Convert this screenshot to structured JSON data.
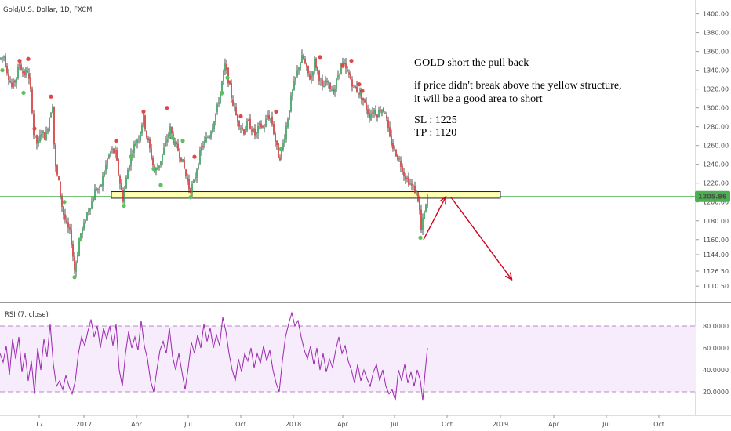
{
  "symbol_label": "Gold/U.S. Dollar, 1D, FXCM",
  "rsi_label": "RSI (7, close)",
  "current_price_label": "1205.86",
  "colors": {
    "up": "#2e9a55",
    "down": "#d12e2e",
    "wick": "#222222",
    "price_line": "#4caf50",
    "zone_fill": "#ffffb0",
    "zone_stroke": "#222222",
    "arrow": "#d0021b",
    "rsi_line": "#9c27b0",
    "rsi_band": "#f6ecfb",
    "rsi_level": "#b58bc4"
  },
  "annotation": {
    "title": "GOLD short the pull back",
    "line1": "if price didn't break above the yellow structure,",
    "line2": "it will be a good area to short",
    "sl": "SL : 1225",
    "tp": "TP : 1120"
  },
  "chart_data": [
    {
      "type": "candlestick",
      "title": "Gold/U.S. Dollar, 1D, FXCM",
      "ylim": [
        1104,
        1408
      ],
      "y_ticks": [
        "1400.00",
        "1380.00",
        "1360.00",
        "1340.00",
        "1320.00",
        "1300.00",
        "1280.00",
        "1260.00",
        "1240.00",
        "1220.00",
        "1200.00",
        "1180.00",
        "1160.00",
        "1144.00",
        "1126.50",
        "1110.50"
      ],
      "x_ticks": [
        "17",
        "2017",
        "Apr",
        "Jul",
        "Oct",
        "2018",
        "Apr",
        "Jul",
        "Oct",
        "2019",
        "Apr",
        "Jul",
        "Oct"
      ],
      "current_price": 1205.86,
      "resistance_zone": [
        1204,
        1211
      ],
      "projection": [
        [
          1160,
          1205
        ],
        [
          1205,
          1118
        ]
      ],
      "price_series": [
        {
          "x": 0,
          "y": 1352
        },
        {
          "x": 5,
          "y": 1355
        },
        {
          "x": 10,
          "y": 1336
        },
        {
          "x": 15,
          "y": 1322
        },
        {
          "x": 20,
          "y": 1330
        },
        {
          "x": 25,
          "y": 1348
        },
        {
          "x": 30,
          "y": 1335
        },
        {
          "x": 35,
          "y": 1340
        },
        {
          "x": 40,
          "y": 1312
        },
        {
          "x": 43,
          "y": 1272
        },
        {
          "x": 48,
          "y": 1260
        },
        {
          "x": 53,
          "y": 1275
        },
        {
          "x": 58,
          "y": 1268
        },
        {
          "x": 63,
          "y": 1290
        },
        {
          "x": 67,
          "y": 1305
        },
        {
          "x": 70,
          "y": 1240
        },
        {
          "x": 75,
          "y": 1220
        },
        {
          "x": 80,
          "y": 1190
        },
        {
          "x": 85,
          "y": 1175
        },
        {
          "x": 90,
          "y": 1165
        },
        {
          "x": 95,
          "y": 1128
        },
        {
          "x": 98,
          "y": 1140
        },
        {
          "x": 102,
          "y": 1165
        },
        {
          "x": 107,
          "y": 1175
        },
        {
          "x": 112,
          "y": 1192
        },
        {
          "x": 117,
          "y": 1200
        },
        {
          "x": 122,
          "y": 1215
        },
        {
          "x": 127,
          "y": 1212
        },
        {
          "x": 132,
          "y": 1230
        },
        {
          "x": 137,
          "y": 1245
        },
        {
          "x": 142,
          "y": 1255
        },
        {
          "x": 147,
          "y": 1252
        },
        {
          "x": 152,
          "y": 1225
        },
        {
          "x": 157,
          "y": 1203
        },
        {
          "x": 162,
          "y": 1230
        },
        {
          "x": 167,
          "y": 1250
        },
        {
          "x": 172,
          "y": 1262
        },
        {
          "x": 177,
          "y": 1270
        },
        {
          "x": 183,
          "y": 1290
        },
        {
          "x": 187,
          "y": 1270
        },
        {
          "x": 192,
          "y": 1252
        },
        {
          "x": 197,
          "y": 1232
        },
        {
          "x": 202,
          "y": 1238
        },
        {
          "x": 207,
          "y": 1250
        },
        {
          "x": 212,
          "y": 1265
        },
        {
          "x": 217,
          "y": 1278
        },
        {
          "x": 222,
          "y": 1262
        },
        {
          "x": 227,
          "y": 1255
        },
        {
          "x": 232,
          "y": 1245
        },
        {
          "x": 237,
          "y": 1228
        },
        {
          "x": 242,
          "y": 1212
        },
        {
          "x": 247,
          "y": 1220
        },
        {
          "x": 252,
          "y": 1240
        },
        {
          "x": 257,
          "y": 1258
        },
        {
          "x": 262,
          "y": 1265
        },
        {
          "x": 267,
          "y": 1272
        },
        {
          "x": 272,
          "y": 1285
        },
        {
          "x": 277,
          "y": 1300
        },
        {
          "x": 282,
          "y": 1322
        },
        {
          "x": 287,
          "y": 1345
        },
        {
          "x": 291,
          "y": 1330
        },
        {
          "x": 296,
          "y": 1308
        },
        {
          "x": 301,
          "y": 1292
        },
        {
          "x": 306,
          "y": 1282
        },
        {
          "x": 311,
          "y": 1275
        },
        {
          "x": 316,
          "y": 1285
        },
        {
          "x": 321,
          "y": 1278
        },
        {
          "x": 326,
          "y": 1270
        },
        {
          "x": 331,
          "y": 1282
        },
        {
          "x": 336,
          "y": 1278
        },
        {
          "x": 341,
          "y": 1292
        },
        {
          "x": 346,
          "y": 1288
        },
        {
          "x": 351,
          "y": 1265
        },
        {
          "x": 356,
          "y": 1245
        },
        {
          "x": 361,
          "y": 1262
        },
        {
          "x": 366,
          "y": 1285
        },
        {
          "x": 371,
          "y": 1310
        },
        {
          "x": 376,
          "y": 1328
        },
        {
          "x": 381,
          "y": 1345
        },
        {
          "x": 386,
          "y": 1355
        },
        {
          "x": 391,
          "y": 1340
        },
        {
          "x": 396,
          "y": 1330
        },
        {
          "x": 401,
          "y": 1350
        },
        {
          "x": 406,
          "y": 1336
        },
        {
          "x": 411,
          "y": 1320
        },
        {
          "x": 416,
          "y": 1328
        },
        {
          "x": 421,
          "y": 1322
        },
        {
          "x": 426,
          "y": 1318
        },
        {
          "x": 431,
          "y": 1335
        },
        {
          "x": 436,
          "y": 1348
        },
        {
          "x": 441,
          "y": 1340
        },
        {
          "x": 446,
          "y": 1333
        },
        {
          "x": 451,
          "y": 1322
        },
        {
          "x": 456,
          "y": 1318
        },
        {
          "x": 461,
          "y": 1312
        },
        {
          "x": 466,
          "y": 1302
        },
        {
          "x": 471,
          "y": 1292
        },
        {
          "x": 476,
          "y": 1298
        },
        {
          "x": 481,
          "y": 1294
        },
        {
          "x": 486,
          "y": 1300
        },
        {
          "x": 491,
          "y": 1296
        },
        {
          "x": 496,
          "y": 1270
        },
        {
          "x": 501,
          "y": 1258
        },
        {
          "x": 506,
          "y": 1250
        },
        {
          "x": 511,
          "y": 1240
        },
        {
          "x": 516,
          "y": 1228
        },
        {
          "x": 521,
          "y": 1222
        },
        {
          "x": 526,
          "y": 1215
        },
        {
          "x": 531,
          "y": 1210
        },
        {
          "x": 534,
          "y": 1200
        },
        {
          "x": 537,
          "y": 1170
        },
        {
          "x": 540,
          "y": 1185
        },
        {
          "x": 543,
          "y": 1195
        },
        {
          "x": 546,
          "y": 1206
        }
      ],
      "markers": [
        {
          "x": 3,
          "y": 1340,
          "c": "up"
        },
        {
          "x": 25,
          "y": 1350,
          "c": "down"
        },
        {
          "x": 36,
          "y": 1352,
          "c": "down"
        },
        {
          "x": 30,
          "y": 1316,
          "c": "up"
        },
        {
          "x": 65,
          "y": 1312,
          "c": "down"
        },
        {
          "x": 44,
          "y": 1278,
          "c": "down"
        },
        {
          "x": 95,
          "y": 1120,
          "c": "up"
        },
        {
          "x": 102,
          "y": 1160,
          "c": "up"
        },
        {
          "x": 82,
          "y": 1200,
          "c": "up"
        },
        {
          "x": 148,
          "y": 1265,
          "c": "down"
        },
        {
          "x": 158,
          "y": 1196,
          "c": "up"
        },
        {
          "x": 167,
          "y": 1248,
          "c": "up"
        },
        {
          "x": 183,
          "y": 1296,
          "c": "down"
        },
        {
          "x": 196,
          "y": 1235,
          "c": "up"
        },
        {
          "x": 205,
          "y": 1218,
          "c": "up"
        },
        {
          "x": 213,
          "y": 1300,
          "c": "down"
        },
        {
          "x": 220,
          "y": 1268,
          "c": "up"
        },
        {
          "x": 233,
          "y": 1265,
          "c": "up"
        },
        {
          "x": 243,
          "y": 1205,
          "c": "up"
        },
        {
          "x": 248,
          "y": 1248,
          "c": "down"
        },
        {
          "x": 283,
          "y": 1316,
          "c": "up"
        },
        {
          "x": 290,
          "y": 1332,
          "c": "up"
        },
        {
          "x": 307,
          "y": 1291,
          "c": "down"
        },
        {
          "x": 352,
          "y": 1296,
          "c": "down"
        },
        {
          "x": 358,
          "y": 1256,
          "c": "up"
        },
        {
          "x": 408,
          "y": 1354,
          "c": "down"
        },
        {
          "x": 437,
          "y": 1345,
          "c": "down"
        },
        {
          "x": 448,
          "y": 1350,
          "c": "down"
        },
        {
          "x": 458,
          "y": 1325,
          "c": "down"
        },
        {
          "x": 462,
          "y": 1318,
          "c": "down"
        },
        {
          "x": 536,
          "y": 1162,
          "c": "up"
        }
      ]
    },
    {
      "type": "line",
      "title": "RSI (7, close)",
      "ylim": [
        0,
        100
      ],
      "y_ticks": [
        "80.0000",
        "60.0000",
        "40.0000",
        "20.0000"
      ],
      "levels": [
        80,
        20
      ],
      "series": [
        {
          "x": 0,
          "y": 55
        },
        {
          "x": 4,
          "y": 47
        },
        {
          "x": 8,
          "y": 62
        },
        {
          "x": 12,
          "y": 35
        },
        {
          "x": 16,
          "y": 68
        },
        {
          "x": 20,
          "y": 50
        },
        {
          "x": 24,
          "y": 70
        },
        {
          "x": 28,
          "y": 38
        },
        {
          "x": 32,
          "y": 55
        },
        {
          "x": 36,
          "y": 30
        },
        {
          "x": 40,
          "y": 48
        },
        {
          "x": 44,
          "y": 18
        },
        {
          "x": 48,
          "y": 60
        },
        {
          "x": 52,
          "y": 40
        },
        {
          "x": 56,
          "y": 68
        },
        {
          "x": 60,
          "y": 52
        },
        {
          "x": 64,
          "y": 82
        },
        {
          "x": 68,
          "y": 45
        },
        {
          "x": 72,
          "y": 25
        },
        {
          "x": 76,
          "y": 30
        },
        {
          "x": 80,
          "y": 22
        },
        {
          "x": 84,
          "y": 35
        },
        {
          "x": 88,
          "y": 25
        },
        {
          "x": 92,
          "y": 18
        },
        {
          "x": 96,
          "y": 30
        },
        {
          "x": 100,
          "y": 55
        },
        {
          "x": 104,
          "y": 70
        },
        {
          "x": 108,
          "y": 62
        },
        {
          "x": 112,
          "y": 75
        },
        {
          "x": 116,
          "y": 86
        },
        {
          "x": 120,
          "y": 70
        },
        {
          "x": 124,
          "y": 80
        },
        {
          "x": 128,
          "y": 60
        },
        {
          "x": 132,
          "y": 78
        },
        {
          "x": 136,
          "y": 68
        },
        {
          "x": 140,
          "y": 80
        },
        {
          "x": 144,
          "y": 62
        },
        {
          "x": 148,
          "y": 82
        },
        {
          "x": 152,
          "y": 40
        },
        {
          "x": 156,
          "y": 25
        },
        {
          "x": 160,
          "y": 55
        },
        {
          "x": 164,
          "y": 75
        },
        {
          "x": 168,
          "y": 60
        },
        {
          "x": 172,
          "y": 70
        },
        {
          "x": 176,
          "y": 58
        },
        {
          "x": 180,
          "y": 85
        },
        {
          "x": 184,
          "y": 62
        },
        {
          "x": 188,
          "y": 50
        },
        {
          "x": 192,
          "y": 30
        },
        {
          "x": 196,
          "y": 20
        },
        {
          "x": 200,
          "y": 40
        },
        {
          "x": 204,
          "y": 58
        },
        {
          "x": 208,
          "y": 66
        },
        {
          "x": 212,
          "y": 55
        },
        {
          "x": 216,
          "y": 78
        },
        {
          "x": 220,
          "y": 52
        },
        {
          "x": 224,
          "y": 40
        },
        {
          "x": 228,
          "y": 55
        },
        {
          "x": 232,
          "y": 38
        },
        {
          "x": 236,
          "y": 22
        },
        {
          "x": 240,
          "y": 42
        },
        {
          "x": 244,
          "y": 65
        },
        {
          "x": 248,
          "y": 55
        },
        {
          "x": 252,
          "y": 72
        },
        {
          "x": 256,
          "y": 60
        },
        {
          "x": 260,
          "y": 82
        },
        {
          "x": 264,
          "y": 66
        },
        {
          "x": 268,
          "y": 78
        },
        {
          "x": 272,
          "y": 60
        },
        {
          "x": 276,
          "y": 72
        },
        {
          "x": 280,
          "y": 62
        },
        {
          "x": 284,
          "y": 88
        },
        {
          "x": 288,
          "y": 75
        },
        {
          "x": 292,
          "y": 55
        },
        {
          "x": 296,
          "y": 40
        },
        {
          "x": 300,
          "y": 30
        },
        {
          "x": 304,
          "y": 50
        },
        {
          "x": 308,
          "y": 38
        },
        {
          "x": 312,
          "y": 55
        },
        {
          "x": 316,
          "y": 48
        },
        {
          "x": 320,
          "y": 60
        },
        {
          "x": 324,
          "y": 42
        },
        {
          "x": 328,
          "y": 55
        },
        {
          "x": 332,
          "y": 46
        },
        {
          "x": 336,
          "y": 62
        },
        {
          "x": 340,
          "y": 48
        },
        {
          "x": 344,
          "y": 58
        },
        {
          "x": 348,
          "y": 40
        },
        {
          "x": 352,
          "y": 28
        },
        {
          "x": 356,
          "y": 20
        },
        {
          "x": 360,
          "y": 48
        },
        {
          "x": 364,
          "y": 70
        },
        {
          "x": 368,
          "y": 82
        },
        {
          "x": 372,
          "y": 92
        },
        {
          "x": 376,
          "y": 80
        },
        {
          "x": 380,
          "y": 85
        },
        {
          "x": 384,
          "y": 70
        },
        {
          "x": 388,
          "y": 58
        },
        {
          "x": 392,
          "y": 50
        },
        {
          "x": 396,
          "y": 62
        },
        {
          "x": 400,
          "y": 45
        },
        {
          "x": 404,
          "y": 60
        },
        {
          "x": 408,
          "y": 40
        },
        {
          "x": 412,
          "y": 55
        },
        {
          "x": 416,
          "y": 38
        },
        {
          "x": 420,
          "y": 50
        },
        {
          "x": 424,
          "y": 42
        },
        {
          "x": 428,
          "y": 58
        },
        {
          "x": 432,
          "y": 70
        },
        {
          "x": 436,
          "y": 55
        },
        {
          "x": 440,
          "y": 62
        },
        {
          "x": 444,
          "y": 48
        },
        {
          "x": 448,
          "y": 40
        },
        {
          "x": 452,
          "y": 28
        },
        {
          "x": 456,
          "y": 45
        },
        {
          "x": 460,
          "y": 30
        },
        {
          "x": 464,
          "y": 40
        },
        {
          "x": 468,
          "y": 32
        },
        {
          "x": 472,
          "y": 25
        },
        {
          "x": 476,
          "y": 38
        },
        {
          "x": 480,
          "y": 45
        },
        {
          "x": 484,
          "y": 30
        },
        {
          "x": 488,
          "y": 40
        },
        {
          "x": 492,
          "y": 25
        },
        {
          "x": 496,
          "y": 18
        },
        {
          "x": 500,
          "y": 22
        },
        {
          "x": 504,
          "y": 12
        },
        {
          "x": 508,
          "y": 40
        },
        {
          "x": 512,
          "y": 30
        },
        {
          "x": 516,
          "y": 45
        },
        {
          "x": 520,
          "y": 28
        },
        {
          "x": 524,
          "y": 38
        },
        {
          "x": 528,
          "y": 25
        },
        {
          "x": 532,
          "y": 40
        },
        {
          "x": 536,
          "y": 30
        },
        {
          "x": 539,
          "y": 12
        },
        {
          "x": 542,
          "y": 38
        },
        {
          "x": 545,
          "y": 60
        }
      ]
    }
  ]
}
